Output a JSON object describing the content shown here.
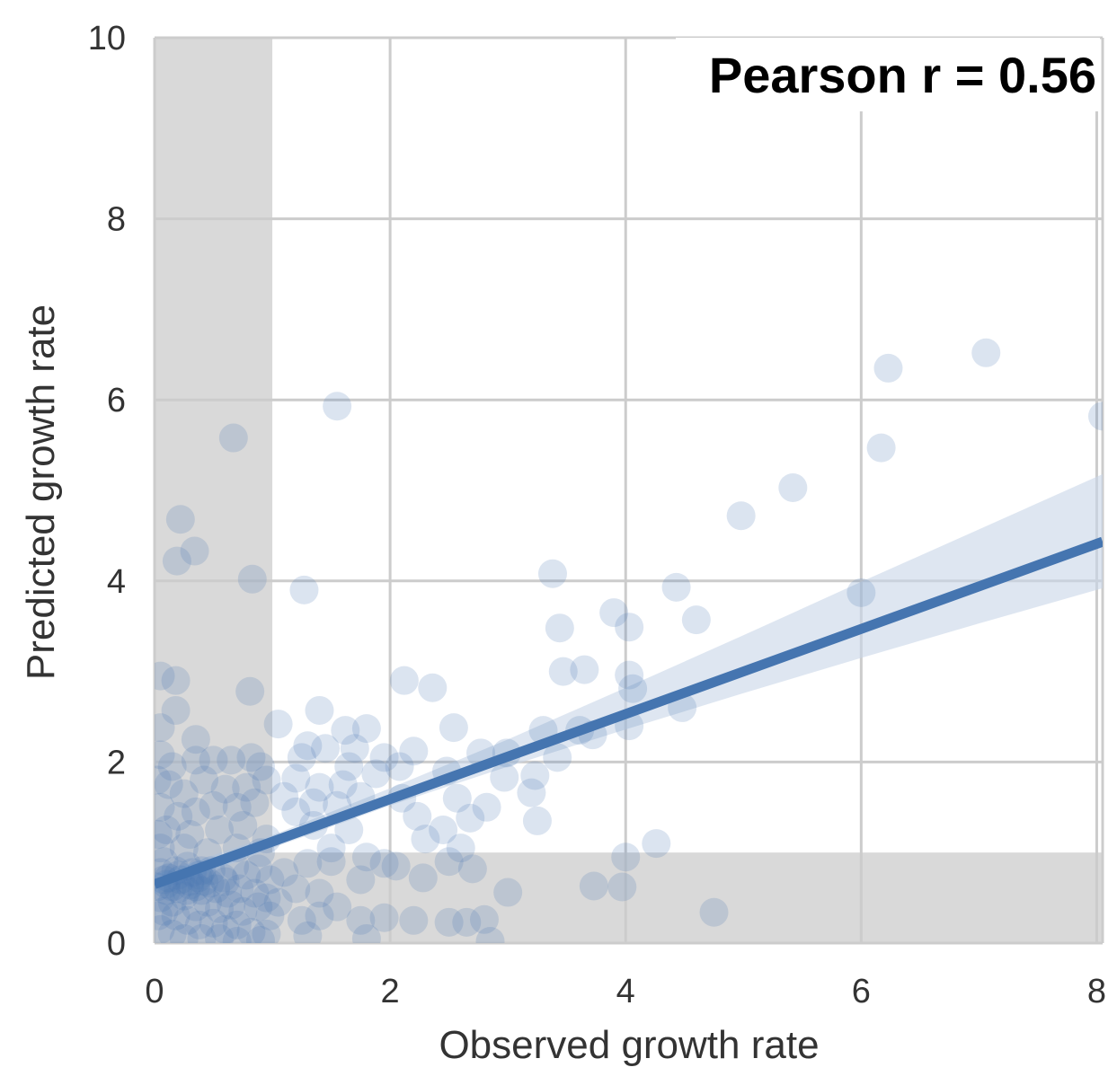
{
  "chart_data": {
    "type": "scatter",
    "title": "",
    "xlabel": "Observed growth rate",
    "ylabel": "Predicted growth rate",
    "xlim": [
      0,
      8.05
    ],
    "ylim": [
      0,
      10
    ],
    "xticks": [
      0,
      2,
      4,
      6,
      8
    ],
    "xtick_labels": [
      "0",
      "2",
      "4",
      "6",
      "8"
    ],
    "yticks": [
      0,
      2,
      4,
      6,
      8,
      10
    ],
    "ytick_labels": [
      "0",
      "2",
      "4",
      "6",
      "8",
      "10"
    ],
    "grid": true,
    "annotation": "Pearson r = 0.56",
    "shaded_regions": [
      {
        "axis": "x",
        "from": 0,
        "to": 1
      },
      {
        "axis": "y",
        "from": 0,
        "to": 1
      }
    ],
    "colors": {
      "points": "#4a7ab5",
      "regression_line": "#4575b0",
      "confidence_band": "#c8d6e8",
      "shade": "#d9d9d9",
      "grid": "#cccccc"
    },
    "regression": {
      "intercept": 0.65,
      "slope": 0.47
    },
    "confidence_band": [
      {
        "x": 0,
        "lower": 0.55,
        "upper": 0.75
      },
      {
        "x": 1,
        "lower": 1.05,
        "upper": 1.19
      },
      {
        "x": 2,
        "lower": 1.52,
        "upper": 1.71
      },
      {
        "x": 3,
        "lower": 1.95,
        "upper": 2.25
      },
      {
        "x": 4,
        "lower": 2.36,
        "upper": 2.82
      },
      {
        "x": 5,
        "lower": 2.76,
        "upper": 3.4
      },
      {
        "x": 6,
        "lower": 3.15,
        "upper": 3.99
      },
      {
        "x": 7,
        "lower": 3.53,
        "upper": 4.57
      },
      {
        "x": 8.05,
        "lower": 3.92,
        "upper": 5.18
      }
    ],
    "points": [
      [
        7.06,
        6.52
      ],
      [
        6.23,
        6.35
      ],
      [
        8.05,
        5.82
      ],
      [
        6.17,
        5.47
      ],
      [
        5.42,
        5.03
      ],
      [
        4.98,
        4.72
      ],
      [
        6.0,
        3.87
      ],
      [
        4.43,
        3.93
      ],
      [
        4.6,
        3.57
      ],
      [
        3.38,
        4.08
      ],
      [
        3.44,
        3.48
      ],
      [
        3.9,
        3.65
      ],
      [
        4.03,
        3.49
      ],
      [
        3.47,
        3.0
      ],
      [
        3.65,
        3.02
      ],
      [
        4.03,
        2.96
      ],
      [
        4.06,
        2.81
      ],
      [
        4.48,
        2.6
      ],
      [
        3.72,
        2.3
      ],
      [
        3.61,
        2.35
      ],
      [
        4.03,
        2.4
      ],
      [
        3.3,
        2.35
      ],
      [
        3.42,
        2.05
      ],
      [
        2.99,
        2.1
      ],
      [
        3.23,
        1.85
      ],
      [
        3.2,
        1.66
      ],
      [
        3.25,
        1.35
      ],
      [
        2.97,
        1.83
      ],
      [
        2.77,
        2.1
      ],
      [
        2.54,
        2.38
      ],
      [
        2.36,
        2.82
      ],
      [
        2.12,
        2.9
      ],
      [
        2.2,
        2.12
      ],
      [
        2.08,
        1.95
      ],
      [
        1.95,
        2.05
      ],
      [
        1.88,
        1.87
      ],
      [
        2.48,
        1.9
      ],
      [
        2.57,
        1.6
      ],
      [
        2.68,
        1.38
      ],
      [
        2.82,
        1.5
      ],
      [
        2.45,
        1.25
      ],
      [
        2.23,
        1.4
      ],
      [
        2.1,
        1.6
      ],
      [
        2.3,
        1.15
      ],
      [
        2.6,
        1.05
      ],
      [
        1.55,
        5.93
      ],
      [
        1.27,
        3.9
      ],
      [
        1.4,
        2.57
      ],
      [
        1.3,
        2.18
      ],
      [
        1.45,
        2.15
      ],
      [
        1.62,
        2.35
      ],
      [
        1.8,
        2.37
      ],
      [
        1.7,
        2.15
      ],
      [
        1.65,
        1.95
      ],
      [
        1.6,
        1.75
      ],
      [
        1.75,
        1.62
      ],
      [
        1.55,
        1.52
      ],
      [
        1.4,
        1.72
      ],
      [
        1.35,
        1.55
      ],
      [
        1.2,
        1.45
      ],
      [
        1.1,
        1.62
      ],
      [
        1.2,
        1.82
      ],
      [
        1.25,
        2.05
      ],
      [
        1.05,
        2.42
      ],
      [
        1.35,
        1.3
      ],
      [
        1.5,
        1.05
      ],
      [
        1.65,
        1.25
      ],
      [
        1.8,
        0.95
      ],
      [
        1.95,
        0.88
      ],
      [
        2.05,
        0.85
      ],
      [
        1.75,
        0.7
      ],
      [
        2.28,
        0.72
      ],
      [
        2.5,
        0.9
      ],
      [
        2.7,
        0.82
      ],
      [
        3.0,
        0.56
      ],
      [
        2.2,
        0.25
      ],
      [
        2.5,
        0.23
      ],
      [
        2.8,
        0.26
      ],
      [
        2.65,
        0.23
      ],
      [
        1.95,
        0.28
      ],
      [
        1.75,
        0.25
      ],
      [
        1.55,
        0.4
      ],
      [
        1.4,
        0.55
      ],
      [
        1.2,
        0.6
      ],
      [
        1.1,
        0.78
      ],
      [
        1.3,
        0.88
      ],
      [
        1.5,
        0.9
      ],
      [
        1.4,
        0.3
      ],
      [
        1.05,
        0.45
      ],
      [
        1.25,
        0.25
      ],
      [
        1.8,
        0.05
      ],
      [
        2.85,
        0.02
      ],
      [
        1.3,
        0.08
      ],
      [
        4.26,
        1.1
      ],
      [
        4.0,
        0.95
      ],
      [
        3.73,
        0.63
      ],
      [
        3.97,
        0.62
      ],
      [
        4.75,
        0.34
      ],
      [
        0.67,
        5.58
      ],
      [
        0.22,
        4.68
      ],
      [
        0.34,
        4.33
      ],
      [
        0.19,
        4.22
      ],
      [
        0.83,
        4.02
      ],
      [
        0.05,
        2.95
      ],
      [
        0.18,
        2.9
      ],
      [
        0.18,
        2.57
      ],
      [
        0.81,
        2.78
      ],
      [
        0.05,
        2.38
      ],
      [
        0.35,
        2.25
      ],
      [
        0.35,
        2.02
      ],
      [
        0.5,
        2.02
      ],
      [
        0.65,
        2.02
      ],
      [
        0.82,
        2.05
      ],
      [
        0.9,
        1.95
      ],
      [
        0.05,
        2.08
      ],
      [
        0.15,
        1.95
      ],
      [
        0.12,
        1.75
      ],
      [
        0.25,
        1.65
      ],
      [
        0.42,
        1.8
      ],
      [
        0.6,
        1.7
      ],
      [
        0.78,
        1.72
      ],
      [
        0.95,
        1.8
      ],
      [
        0.85,
        1.55
      ],
      [
        0.7,
        1.5
      ],
      [
        0.5,
        1.52
      ],
      [
        0.35,
        1.45
      ],
      [
        0.2,
        1.4
      ],
      [
        0.05,
        1.5
      ],
      [
        0.1,
        1.25
      ],
      [
        0.3,
        1.2
      ],
      [
        0.55,
        1.25
      ],
      [
        0.75,
        1.3
      ],
      [
        0.95,
        1.15
      ],
      [
        0.9,
        1.0
      ],
      [
        0.7,
        1.05
      ],
      [
        0.45,
        1.0
      ],
      [
        0.25,
        1.05
      ],
      [
        0.05,
        1.05
      ],
      [
        0.08,
        0.9
      ],
      [
        0.18,
        0.8
      ],
      [
        0.28,
        0.85
      ],
      [
        0.38,
        0.75
      ],
      [
        0.48,
        0.8
      ],
      [
        0.58,
        0.72
      ],
      [
        0.68,
        0.85
      ],
      [
        0.78,
        0.75
      ],
      [
        0.88,
        0.82
      ],
      [
        0.98,
        0.7
      ],
      [
        0.1,
        0.65
      ],
      [
        0.2,
        0.6
      ],
      [
        0.3,
        0.68
      ],
      [
        0.4,
        0.58
      ],
      [
        0.52,
        0.6
      ],
      [
        0.62,
        0.55
      ],
      [
        0.72,
        0.6
      ],
      [
        0.85,
        0.55
      ],
      [
        0.95,
        0.5
      ],
      [
        0.05,
        0.5
      ],
      [
        0.15,
        0.45
      ],
      [
        0.25,
        0.52
      ],
      [
        0.35,
        0.4
      ],
      [
        0.45,
        0.45
      ],
      [
        0.55,
        0.38
      ],
      [
        0.65,
        0.42
      ],
      [
        0.75,
        0.35
      ],
      [
        0.88,
        0.4
      ],
      [
        0.98,
        0.3
      ],
      [
        0.08,
        0.35
      ],
      [
        0.18,
        0.3
      ],
      [
        0.28,
        0.25
      ],
      [
        0.38,
        0.2
      ],
      [
        0.5,
        0.22
      ],
      [
        0.6,
        0.15
      ],
      [
        0.7,
        0.2
      ],
      [
        0.82,
        0.12
      ],
      [
        0.95,
        0.1
      ],
      [
        0.05,
        0.15
      ],
      [
        0.15,
        0.1
      ],
      [
        0.25,
        0.05
      ],
      [
        0.4,
        0.05
      ],
      [
        0.55,
        0.05
      ],
      [
        0.7,
        0.02
      ],
      [
        0.9,
        0.03
      ],
      [
        0.12,
        0.72
      ],
      [
        0.22,
        0.7
      ],
      [
        0.32,
        0.78
      ],
      [
        0.42,
        0.68
      ],
      [
        0.05,
        0.78
      ],
      [
        0.15,
        0.62
      ],
      [
        0.27,
        0.58
      ],
      [
        0.37,
        0.72
      ],
      [
        0.47,
        0.66
      ],
      [
        0.08,
        0.7
      ],
      [
        0.2,
        0.75
      ],
      [
        0.3,
        0.64
      ],
      [
        0.4,
        0.8
      ],
      [
        0.1,
        0.58
      ],
      [
        0.35,
        0.62
      ],
      [
        0.6,
        0.68
      ],
      [
        0.02,
        0.62
      ],
      [
        0.03,
        1.2
      ],
      [
        0.02,
        1.8
      ],
      [
        0.03,
        0.3
      ]
    ]
  }
}
